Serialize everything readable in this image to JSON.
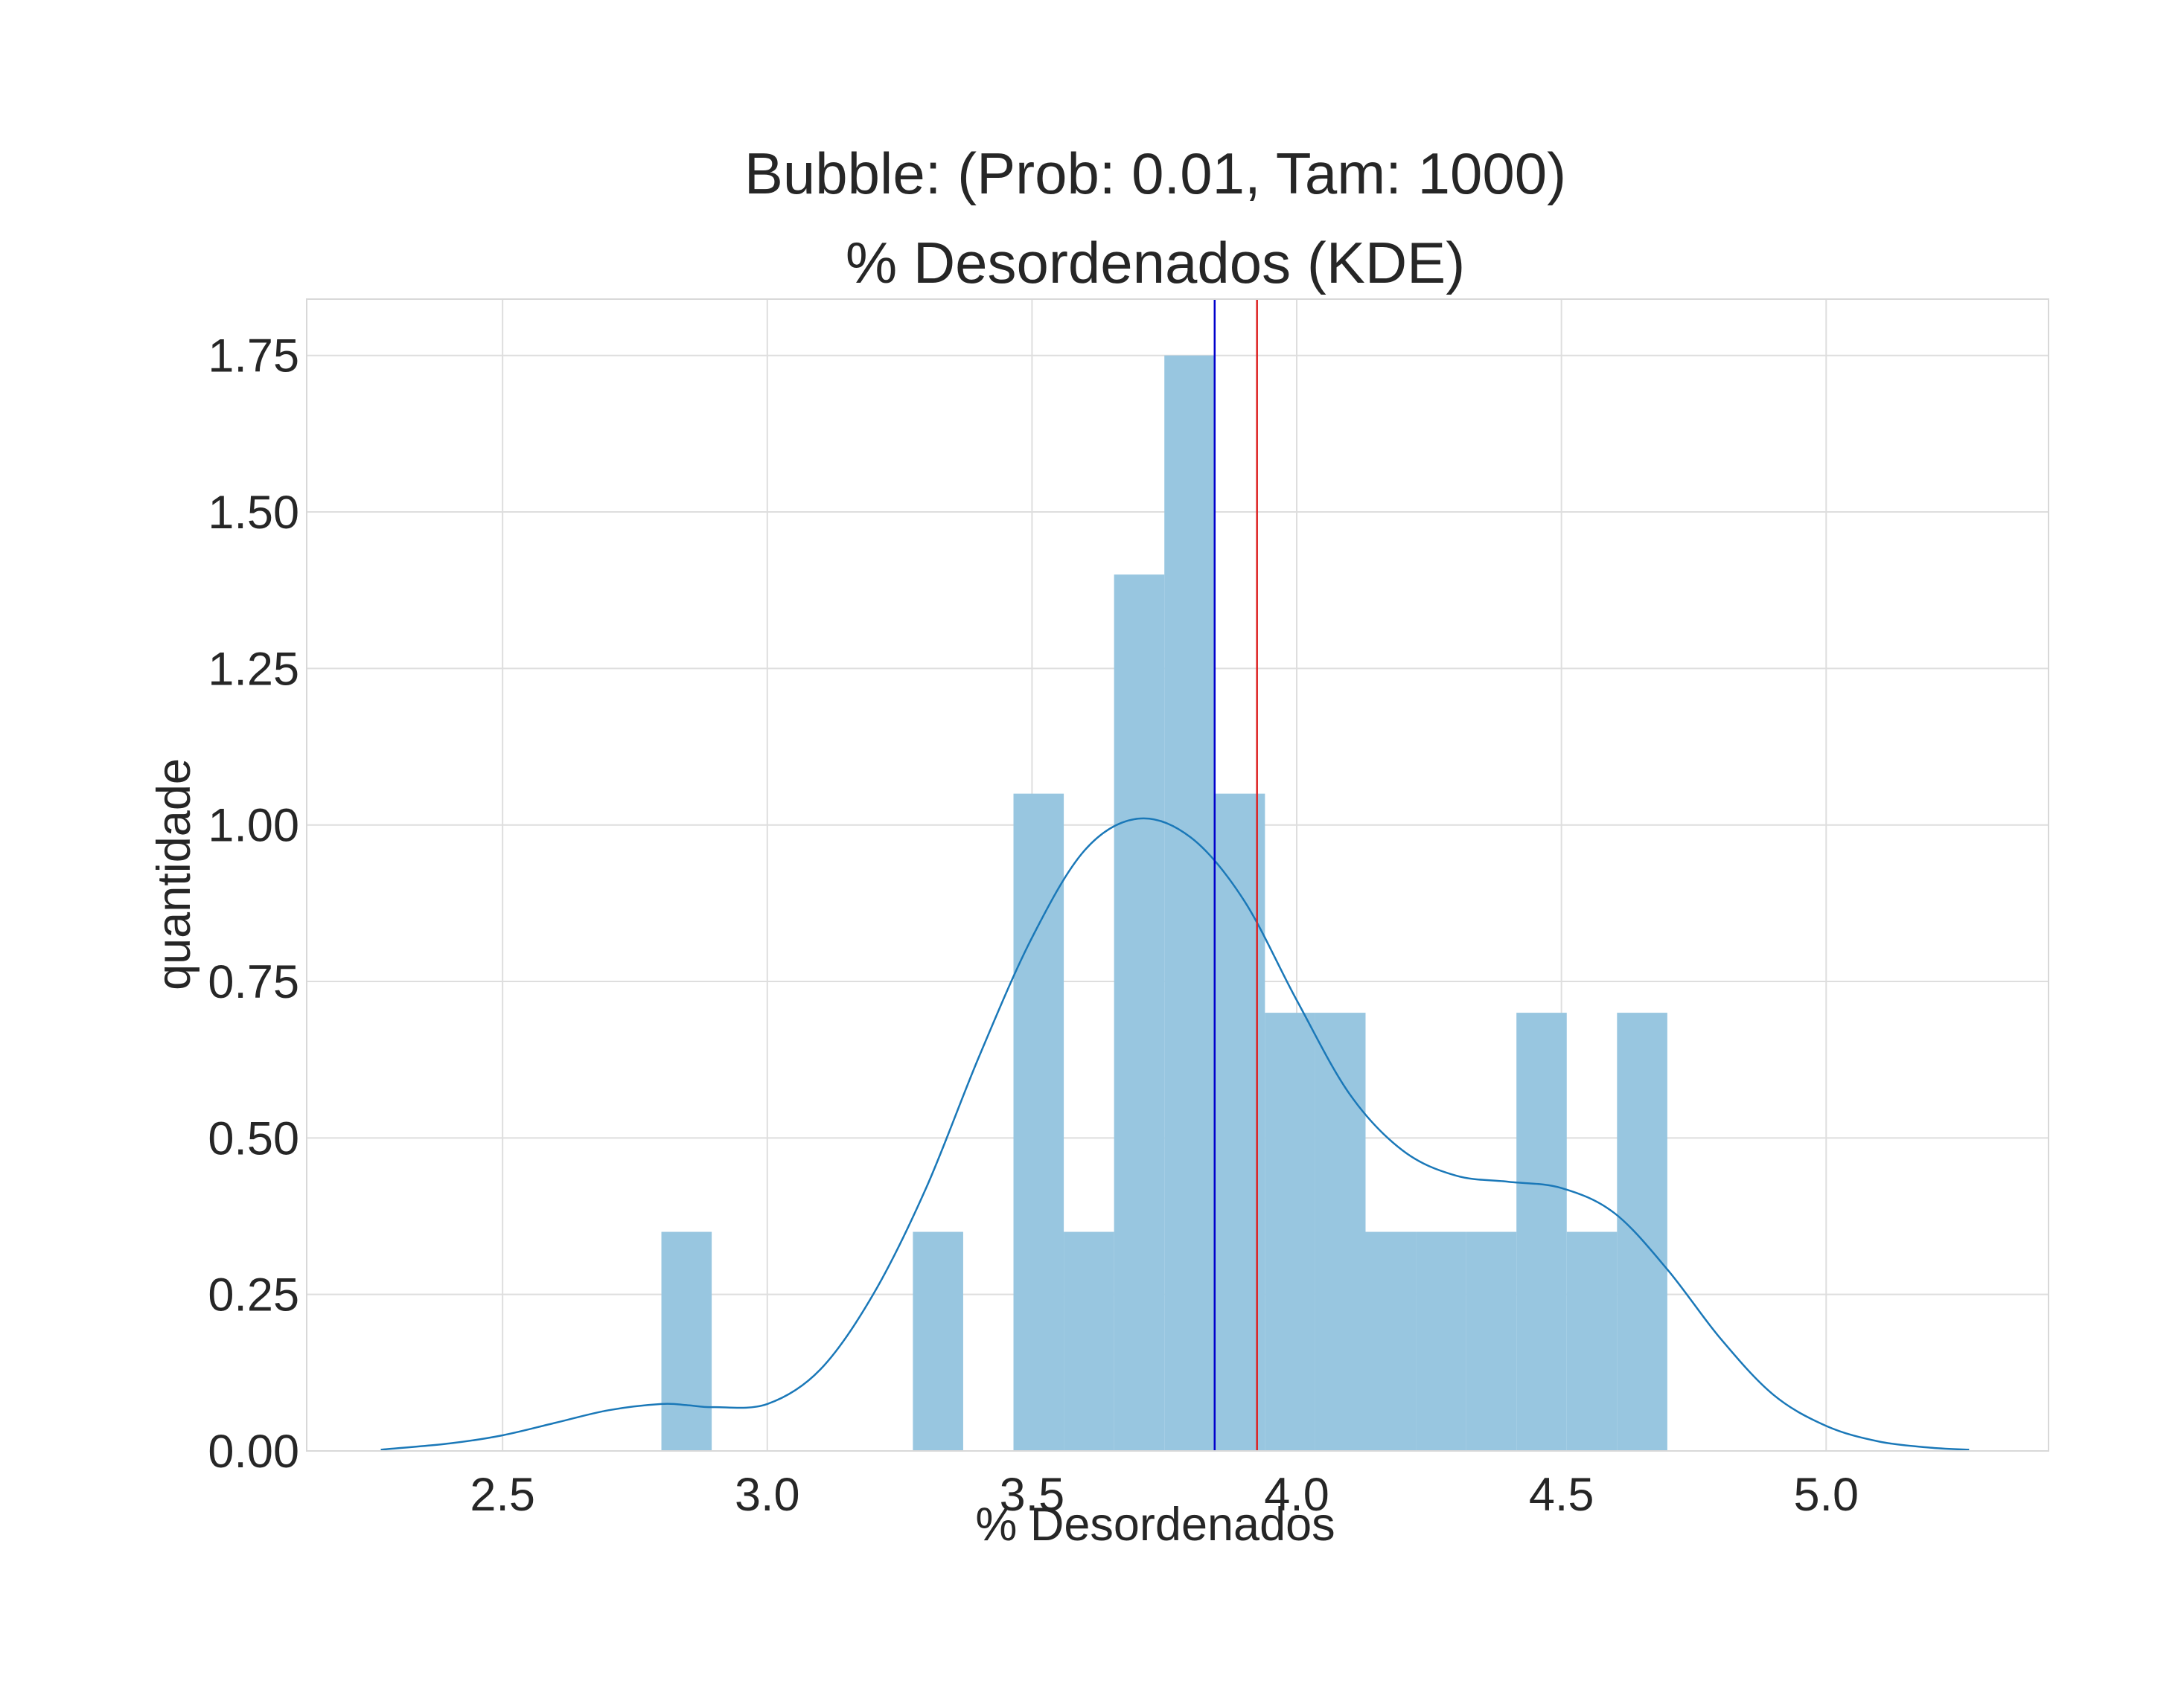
{
  "chart_data": {
    "type": "histogram",
    "title_lines": [
      "Bubble: (Prob: 0.01, Tam: 1000)",
      "% Desordenados (KDE)"
    ],
    "xlabel": "% Desordenados",
    "ylabel": "quantidade",
    "xlim": [
      2.13,
      5.42
    ],
    "ylim": [
      0,
      1.84
    ],
    "xticks": [
      2.5,
      3.0,
      3.5,
      4.0,
      4.5,
      5.0
    ],
    "xtick_labels": [
      "2.5",
      "3.0",
      "3.5",
      "4.0",
      "4.5",
      "5.0"
    ],
    "yticks": [
      0,
      0.25,
      0.5,
      0.75,
      1.0,
      1.25,
      1.5,
      1.75
    ],
    "ytick_labels": [
      "0.00",
      "0.25",
      "0.50",
      "0.75",
      "1.00",
      "1.25",
      "1.50",
      "1.75"
    ],
    "grid": true,
    "bars": [
      {
        "x0": 2.8,
        "x1": 2.895,
        "value": 0.35
      },
      {
        "x0": 3.275,
        "x1": 3.37,
        "value": 0.35
      },
      {
        "x0": 3.465,
        "x1": 3.56,
        "value": 1.05
      },
      {
        "x0": 3.56,
        "x1": 3.655,
        "value": 0.35
      },
      {
        "x0": 3.655,
        "x1": 3.75,
        "value": 1.4
      },
      {
        "x0": 3.75,
        "x1": 3.845,
        "value": 1.75
      },
      {
        "x0": 3.845,
        "x1": 3.94,
        "value": 1.05
      },
      {
        "x0": 3.94,
        "x1": 4.035,
        "value": 0.7
      },
      {
        "x0": 4.035,
        "x1": 4.13,
        "value": 0.7
      },
      {
        "x0": 4.13,
        "x1": 4.225,
        "value": 0.35
      },
      {
        "x0": 4.225,
        "x1": 4.32,
        "value": 0.35
      },
      {
        "x0": 4.32,
        "x1": 4.415,
        "value": 0.35
      },
      {
        "x0": 4.415,
        "x1": 4.51,
        "value": 0.7
      },
      {
        "x0": 4.51,
        "x1": 4.605,
        "value": 0.35
      },
      {
        "x0": 4.605,
        "x1": 4.7,
        "value": 0.7
      }
    ],
    "kde": {
      "x": [
        2.27,
        2.4,
        2.5,
        2.6,
        2.7,
        2.8,
        2.85,
        2.9,
        3.0,
        3.1,
        3.2,
        3.3,
        3.4,
        3.5,
        3.6,
        3.7,
        3.8,
        3.9,
        4.0,
        4.1,
        4.2,
        4.3,
        4.4,
        4.5,
        4.6,
        4.7,
        4.8,
        4.9,
        5.0,
        5.1,
        5.2,
        5.27
      ],
      "y": [
        0.002,
        0.012,
        0.025,
        0.045,
        0.065,
        0.075,
        0.073,
        0.07,
        0.075,
        0.13,
        0.25,
        0.42,
        0.63,
        0.82,
        0.96,
        1.01,
        0.98,
        0.88,
        0.72,
        0.57,
        0.48,
        0.44,
        0.43,
        0.42,
        0.38,
        0.29,
        0.18,
        0.09,
        0.04,
        0.015,
        0.005,
        0.002
      ]
    },
    "vlines": [
      {
        "x": 3.845,
        "color": "#0000cc"
      },
      {
        "x": 3.925,
        "color": "#dd2222"
      }
    ],
    "bar_color": "#98c6e0",
    "kde_color": "#1a78b8",
    "grid_color": "#dedede"
  }
}
